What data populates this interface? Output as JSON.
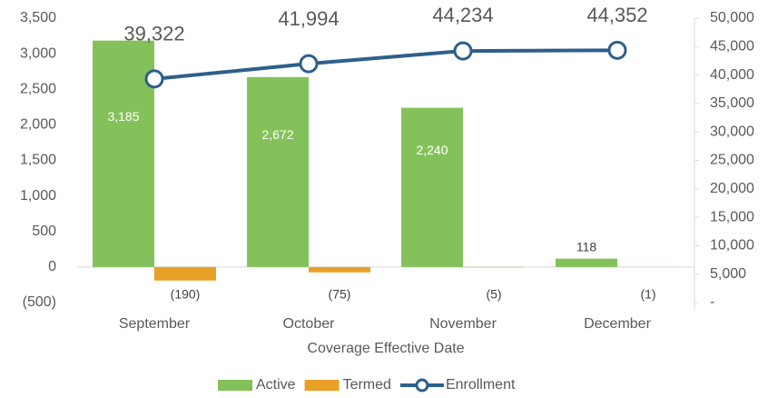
{
  "chart_data": {
    "type": "bar-line",
    "x_label": "Coverage Effective Date",
    "categories": [
      "September",
      "October",
      "November",
      "December"
    ],
    "series": [
      {
        "name": "Active",
        "type": "bar",
        "color": "#84c15a",
        "values": [
          3185,
          2672,
          2240,
          118
        ],
        "value_labels": [
          "3,185",
          "2,672",
          "2,240",
          "118"
        ]
      },
      {
        "name": "Termed",
        "type": "bar",
        "color": "#e8a028",
        "values": [
          -190,
          -75,
          -5,
          -1
        ],
        "value_labels": [
          "(190)",
          "(75)",
          "(5)",
          "(1)"
        ]
      },
      {
        "name": "Enrollment",
        "type": "line",
        "axis": "y2",
        "color": "#2d5f8b",
        "values": [
          39322,
          41994,
          44234,
          44352
        ],
        "value_labels": [
          "39,322",
          "41,994",
          "44,234",
          "44,352"
        ]
      }
    ],
    "ylim": [
      -500,
      3500
    ],
    "yticks": [
      {
        "value": -500,
        "label": "(500)"
      },
      0,
      500,
      {
        "value": 1000,
        "label": "1,000"
      },
      {
        "value": 1500,
        "label": "1,500"
      },
      {
        "value": 2000,
        "label": "2,000"
      },
      {
        "value": 2500,
        "label": "2,500"
      },
      {
        "value": 3000,
        "label": "3,000"
      },
      {
        "value": 3500,
        "label": "3,500"
      }
    ],
    "y2lim": [
      0,
      50000
    ],
    "y2ticks": [
      {
        "value": 0,
        "label": "-"
      },
      {
        "value": 5000,
        "label": "5,000"
      },
      {
        "value": 10000,
        "label": "10,000"
      },
      {
        "value": 15000,
        "label": "15,000"
      },
      {
        "value": 20000,
        "label": "20,000"
      },
      {
        "value": 25000,
        "label": "25,000"
      },
      {
        "value": 30000,
        "label": "30,000"
      },
      {
        "value": 35000,
        "label": "35,000"
      },
      {
        "value": 40000,
        "label": "40,000"
      },
      {
        "value": 45000,
        "label": "45,000"
      },
      {
        "value": 50000,
        "label": "50,000"
      }
    ],
    "legend": "bottom"
  }
}
